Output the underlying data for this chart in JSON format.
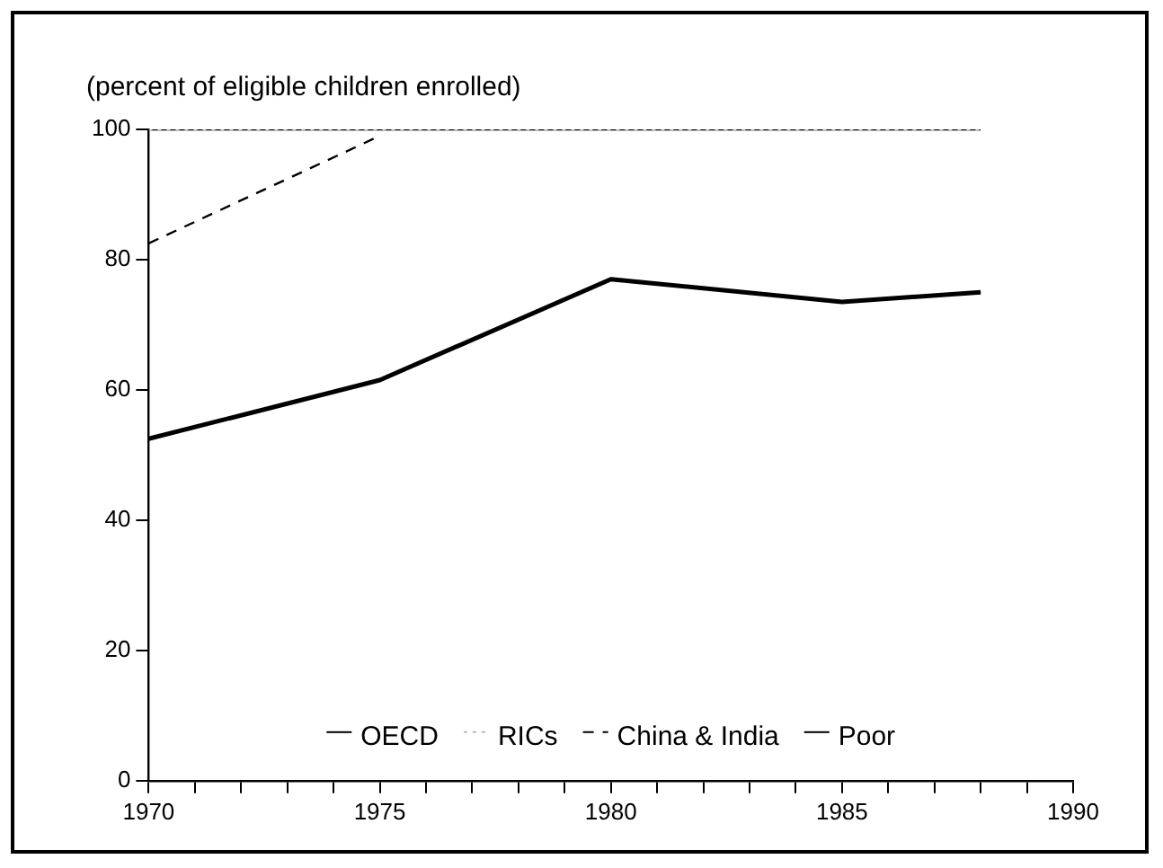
{
  "chart_data": {
    "type": "line",
    "ylabel": "(percent of eligible children enrolled)",
    "x": [
      1970,
      1975,
      1980,
      1985,
      1988
    ],
    "series": [
      {
        "name": "OECD",
        "color": "#000000",
        "values": [
          100,
          100,
          100,
          100,
          100
        ],
        "line_style": "solid"
      },
      {
        "name": "RICs",
        "color": "#bbbbbb",
        "values": [
          100,
          100,
          100,
          100,
          100
        ],
        "line_style": "dotted"
      },
      {
        "name": "China & India",
        "color": "#000000",
        "x": [
          1970,
          1975
        ],
        "values": [
          82.5,
          99
        ],
        "line_style": "dashed"
      },
      {
        "name": "Poor",
        "color": "#000000",
        "values": [
          52.5,
          61.5,
          77,
          73.5,
          75
        ],
        "line_style": "solid"
      }
    ],
    "xlim": [
      1970,
      1990
    ],
    "xticks": [
      1970,
      {
        "value": 1971,
        "label": null
      },
      {
        "value": 1972,
        "label": null
      },
      {
        "value": 1973,
        "label": null
      },
      {
        "value": 1974,
        "label": null
      },
      1975,
      {
        "value": 1976,
        "label": null
      },
      {
        "value": 1977,
        "label": null
      },
      {
        "value": 1978,
        "label": null
      },
      {
        "value": 1979,
        "label": null
      },
      1980,
      {
        "value": 1981,
        "label": null
      },
      {
        "value": 1982,
        "label": null
      },
      {
        "value": 1983,
        "label": null
      },
      {
        "value": 1984,
        "label": null
      },
      1985,
      {
        "value": 1986,
        "label": null
      },
      {
        "value": 1987,
        "label": null
      },
      {
        "value": 1988,
        "label": null
      },
      {
        "value": 1989,
        "label": null
      },
      1990
    ],
    "ylim": [
      0,
      100
    ],
    "yticks": [
      0,
      20,
      40,
      60,
      80,
      100
    ],
    "grid": false,
    "legend": "bottom",
    "marker": "none"
  }
}
